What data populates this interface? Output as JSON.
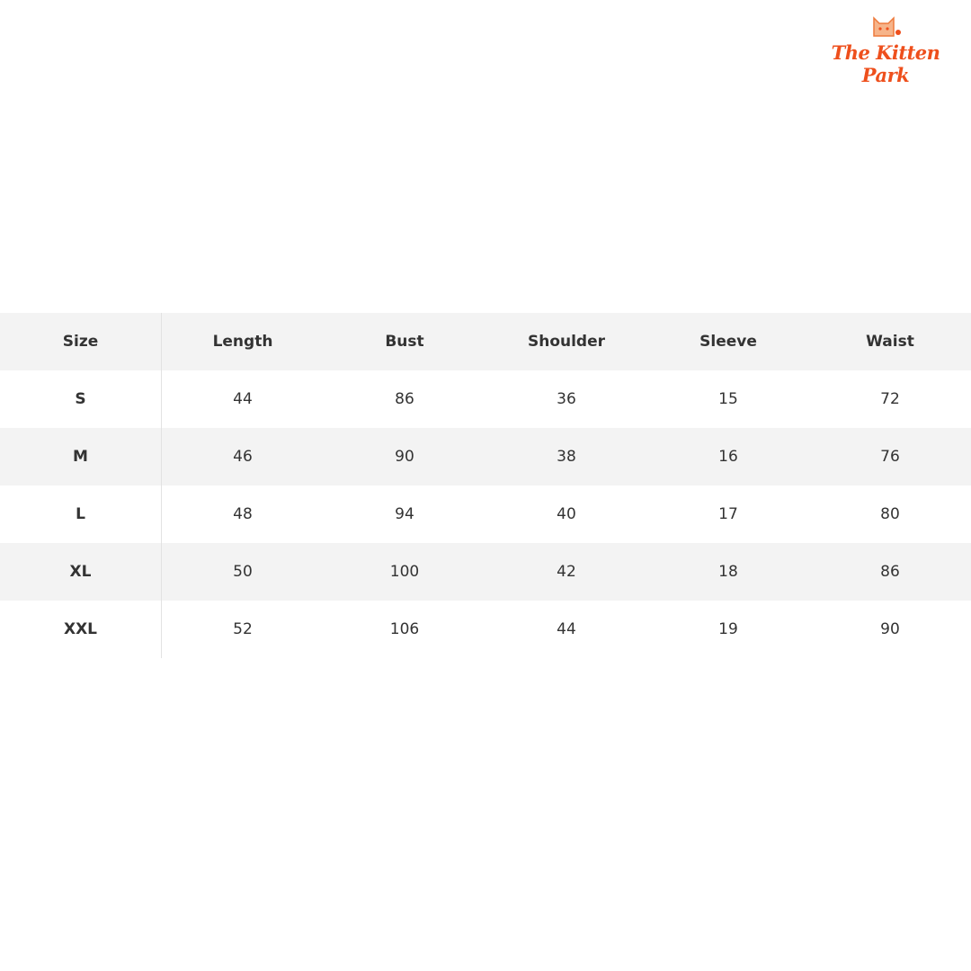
{
  "logo": {
    "text": "The Kitten Park"
  },
  "table": {
    "header": [
      "Size",
      "Length",
      "Bust",
      "Shoulder",
      "Sleeve",
      "Waist"
    ],
    "rows": [
      [
        "S",
        44,
        86,
        36,
        15,
        72
      ],
      [
        "M",
        46,
        90,
        38,
        16,
        76
      ],
      [
        "L",
        48,
        94,
        40,
        17,
        80
      ],
      [
        "XL",
        50,
        100,
        42,
        18,
        86
      ],
      [
        "XXL",
        52,
        106,
        44,
        19,
        90
      ]
    ]
  }
}
